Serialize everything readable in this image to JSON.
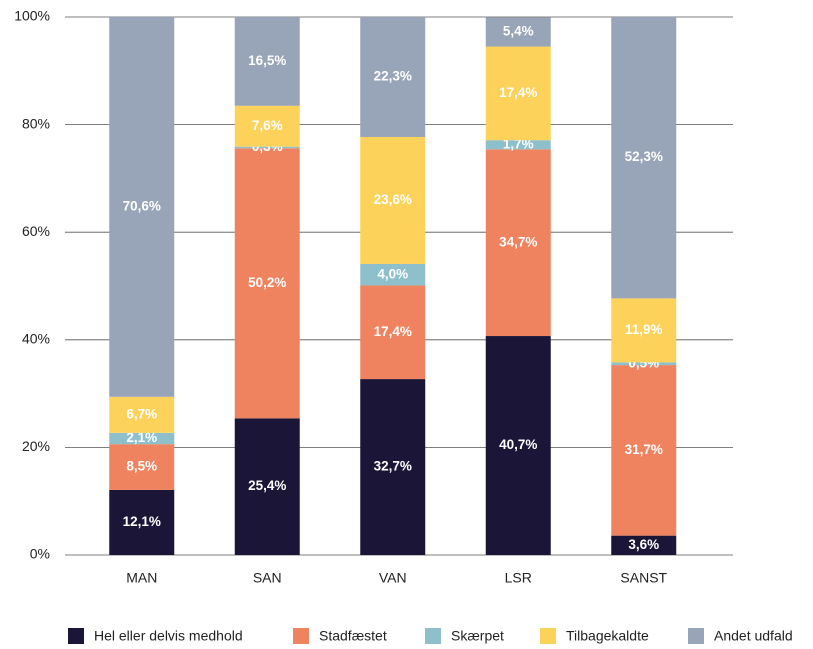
{
  "chart_data": {
    "type": "stacked_bar",
    "categories": [
      "MAN",
      "SAN",
      "VAN",
      "LSR",
      "SANST"
    ],
    "series": [
      {
        "name": "Hel eller delvis medhold",
        "color": "#1b1638",
        "values": [
          12.1,
          25.4,
          32.7,
          40.7,
          3.6
        ],
        "value_labels": [
          "12,1%",
          "25,4%",
          "32,7%",
          "40,7%",
          "3,6%"
        ]
      },
      {
        "name": "Stadfæstet",
        "color": "#f0835f",
        "values": [
          8.5,
          50.2,
          17.4,
          34.7,
          31.7
        ],
        "value_labels": [
          "8,5%",
          "50,2%",
          "17,4%",
          "34,7%",
          "31,7%"
        ]
      },
      {
        "name": "Skærpet",
        "color": "#8dc0cb",
        "values": [
          2.1,
          0.3,
          4.0,
          1.7,
          0.5
        ],
        "value_labels": [
          "2,1%",
          "0,3%",
          "4,0%",
          "1,7%",
          "0,5%"
        ]
      },
      {
        "name": "Tilbagekaldte",
        "color": "#fdd25b",
        "values": [
          6.7,
          7.6,
          23.6,
          17.4,
          11.9
        ],
        "value_labels": [
          "6,7%",
          "7,6%",
          "23,6%",
          "17,4%",
          "11,9%"
        ]
      },
      {
        "name": "Andet udfald",
        "color": "#98a4b7",
        "values": [
          70.6,
          16.5,
          22.3,
          5.4,
          52.3
        ],
        "value_labels": [
          "70,6%",
          "16,5%",
          "22,3%",
          "5,4%",
          "52,3%"
        ]
      }
    ],
    "ylim": [
      0,
      100
    ],
    "yticks": [
      {
        "value": 0,
        "label": "0%"
      },
      {
        "value": 20,
        "label": "20%"
      },
      {
        "value": 40,
        "label": "40%"
      },
      {
        "value": 60,
        "label": "60%"
      },
      {
        "value": 80,
        "label": "80%"
      },
      {
        "value": 100,
        "label": "100%"
      }
    ],
    "grid": true,
    "legend": "bottom"
  }
}
